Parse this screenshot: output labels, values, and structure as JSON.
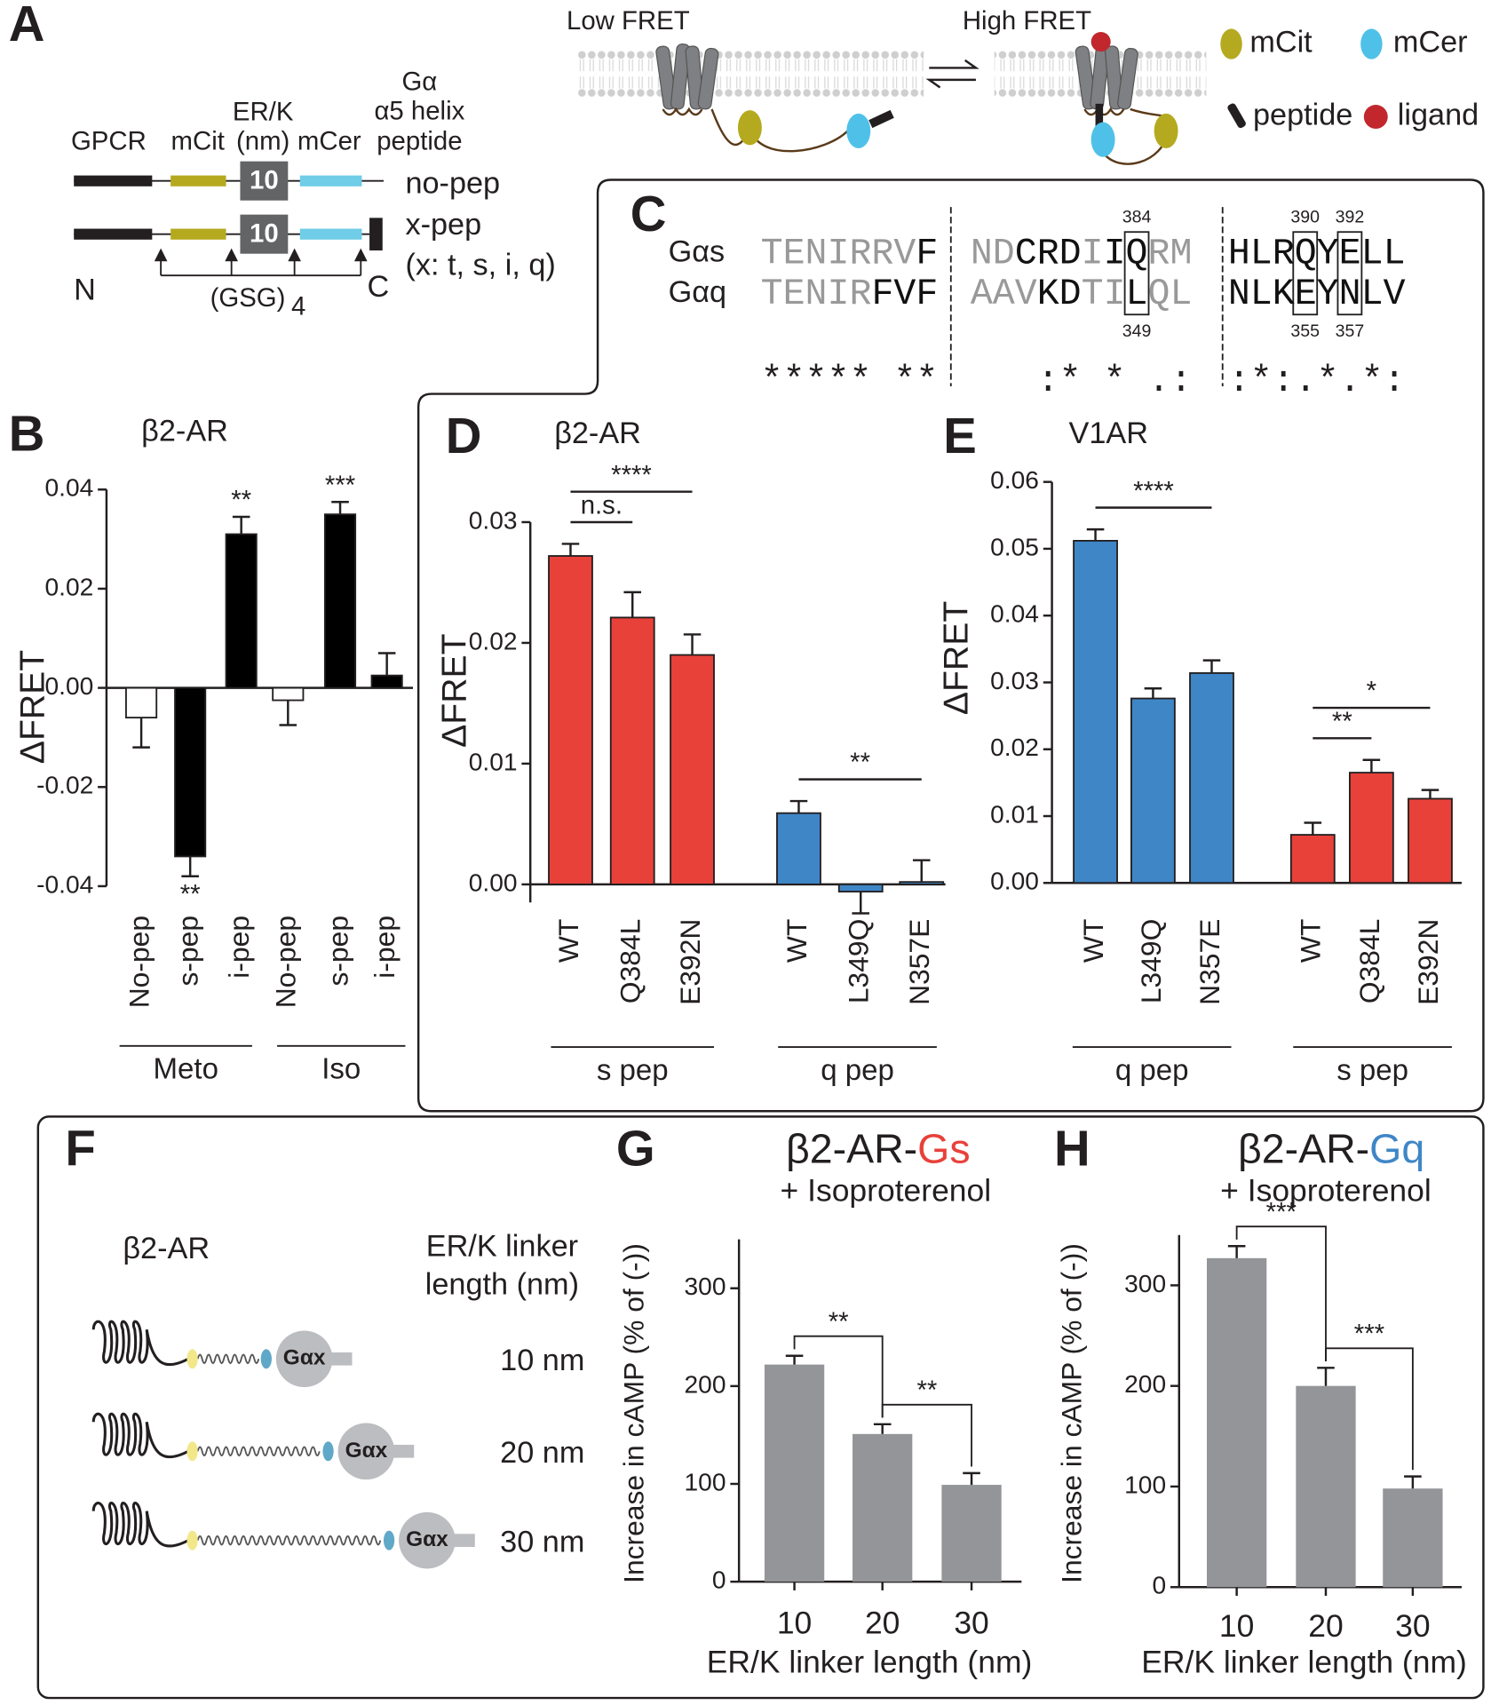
{
  "panel_labels": [
    "A",
    "B",
    "C",
    "D",
    "E",
    "F",
    "G",
    "H"
  ],
  "panel_A": {
    "header": {
      "gpcr": "GPCR",
      "mcit": "mCit",
      "erk": [
        "ER/K",
        "(nm)"
      ],
      "mcer": "mCer",
      "peptide": [
        "Gα",
        "α5 helix",
        "peptide"
      ]
    },
    "constructs": [
      {
        "name": "no-pep",
        "erk": "10"
      },
      {
        "name": "x-pep",
        "erk": "10"
      }
    ],
    "note": "(x: t, s, i, q)",
    "n_term": "N",
    "c_term": "C",
    "linker": "(GSG)",
    "linker_repeat": "4",
    "fret_low": "Low FRET",
    "fret_high": "High FRET",
    "legend": [
      "mCit",
      "mCer",
      "peptide",
      "ligand"
    ]
  },
  "panel_C": {
    "rows": [
      {
        "name": "Gαs",
        "positions": [
          384,
          390,
          392
        ],
        "blocks": [
          [
            {
              "text": "TENIRRV",
              "color": "#999999"
            },
            {
              "text": "F",
              "color": "#111111"
            }
          ],
          [
            {
              "text": "ND",
              "color": "#999999"
            },
            {
              "text": "CRD",
              "color": "#111111"
            },
            {
              "text": "I",
              "color": "#999999"
            },
            {
              "text": "IQ",
              "color": "#111111"
            },
            {
              "text": "RM",
              "color": "#999999"
            }
          ],
          [
            {
              "text": "HLRQYELL",
              "color": "#111111"
            }
          ]
        ]
      },
      {
        "name": "Gαq",
        "positions": [
          349,
          355,
          357
        ],
        "blocks": [
          [
            {
              "text": "TENIR",
              "color": "#999999"
            },
            {
              "text": "FVF",
              "color": "#111111"
            }
          ],
          [
            {
              "text": "AAV",
              "color": "#999999"
            },
            {
              "text": "KD",
              "color": "#111111"
            },
            {
              "text": "TI",
              "color": "#999999"
            },
            {
              "text": "L",
              "color": "#111111"
            },
            {
              "text": "QL",
              "color": "#999999"
            }
          ],
          [
            {
              "text": "NLKEYNLV",
              "color": "#111111"
            }
          ]
        ]
      }
    ],
    "conservation": [
      "***** **",
      "   :* * .:",
      ":*:.*.*:"
    ]
  },
  "panel_F": {
    "title": "β2-AR",
    "header": [
      "ER/K linker",
      "length (nm)"
    ],
    "rows": [
      {
        "length": "10 nm",
        "protein": "Gαx"
      },
      {
        "length": "20 nm",
        "protein": "Gαx"
      },
      {
        "length": "30 nm",
        "protein": "Gαx"
      }
    ]
  },
  "chart_data": [
    {
      "type": "bar",
      "title": "β2-AR",
      "ylabel": "ΔFRET",
      "ylim": [
        -0.04,
        0.04
      ],
      "yticks": [
        0.04,
        0.02,
        {
          "value": 0,
          "label": "0.00"
        },
        -0.02,
        -0.04
      ],
      "groups": [
        {
          "label": "Meto",
          "categories": [
            "No-pep",
            "s-pep",
            "i-pep"
          ],
          "values": [
            -0.006,
            -0.034,
            0.031
          ],
          "errors": [
            0.006,
            0.004,
            0.0035
          ],
          "colors": [
            "#ffffff",
            "#000000",
            "#000000"
          ],
          "significance": [
            null,
            "**",
            "**"
          ]
        },
        {
          "label": "Iso",
          "categories": [
            "No-pep",
            "s-pep",
            "i-pep"
          ],
          "values": [
            -0.0025,
            0.035,
            0.0025
          ],
          "errors": [
            0.005,
            0.0025,
            0.0045
          ],
          "colors": [
            "#ffffff",
            "#000000",
            "#000000"
          ],
          "significance": [
            null,
            "***",
            null
          ]
        }
      ]
    },
    {
      "type": "bar",
      "title": "β2-AR",
      "ylabel": "ΔFRET",
      "ylim": [
        -0.0015,
        0.03
      ],
      "yticks": [
        {
          "value": 0,
          "label": "0.00"
        },
        0.01,
        0.02,
        0.03
      ],
      "groups": [
        {
          "label": "s pep",
          "categories": [
            "WT",
            "Q384L",
            "E392N"
          ],
          "values": [
            0.0272,
            0.0221,
            0.019
          ],
          "errors": [
            0.001,
            0.0021,
            0.0017
          ],
          "color": "#e8413a",
          "comparisons": [
            {
              "label": "n.s.",
              "from": "WT",
              "to": "Q384L"
            },
            {
              "label": "****",
              "from": "WT",
              "to": "E392N"
            }
          ]
        },
        {
          "label": "q pep",
          "categories": [
            "WT",
            "L349Q",
            "N357E"
          ],
          "values": [
            0.0059,
            -0.0006,
            0.0002
          ],
          "errors": [
            0.001,
            0.0018,
            0.0018
          ],
          "color": "#3f86c6",
          "comparisons": [
            {
              "label": "**",
              "from": "WT",
              "to": "N357E"
            }
          ]
        }
      ]
    },
    {
      "type": "bar",
      "title": "V1AR",
      "ylabel": "ΔFRET",
      "ylim": [
        0,
        0.06
      ],
      "yticks": [
        {
          "value": 0,
          "label": "0.00"
        },
        0.01,
        0.02,
        0.03,
        0.04,
        0.05,
        0.06
      ],
      "groups": [
        {
          "label": "q pep",
          "categories": [
            "WT",
            "L349Q",
            "N357E"
          ],
          "values": [
            0.0512,
            0.0276,
            0.0314
          ],
          "errors": [
            0.0017,
            0.0015,
            0.0019
          ],
          "color": "#3f86c6",
          "comparisons": [
            {
              "label": "****",
              "from": "WT",
              "to": "N357E"
            }
          ]
        },
        {
          "label": "s pep",
          "categories": [
            "WT",
            "Q384L",
            "E392N"
          ],
          "values": [
            0.0072,
            0.0165,
            0.0126
          ],
          "errors": [
            0.0018,
            0.0019,
            0.0013
          ],
          "color": "#e8413a",
          "comparisons": [
            {
              "label": "**",
              "from": "WT",
              "to": "Q384L"
            },
            {
              "label": "*",
              "from": "WT",
              "to": "E392N"
            }
          ]
        }
      ]
    },
    {
      "type": "bar",
      "title_parts": [
        {
          "text": "β2-AR-",
          "color": "#231f20"
        },
        {
          "text": "Gs",
          "color": "#e8413a"
        }
      ],
      "subtitle": "+ Isoproterenol",
      "ylabel": "Increase in cAMP (% of (-))",
      "xlabel": "ER/K linker length (nm)",
      "ylim": [
        0,
        350
      ],
      "yticks": [
        0,
        100,
        200,
        300
      ],
      "categories": [
        "10",
        "20",
        "30"
      ],
      "values": [
        222,
        151,
        99
      ],
      "errors": [
        9,
        10,
        12
      ],
      "color": "#939598",
      "comparisons": [
        {
          "label": "**",
          "from": "10",
          "to": "20"
        },
        {
          "label": "**",
          "from": "20",
          "to": "30"
        }
      ]
    },
    {
      "type": "bar",
      "title_parts": [
        {
          "text": "β2-AR-",
          "color": "#231f20"
        },
        {
          "text": "Gq",
          "color": "#3f86c6"
        }
      ],
      "subtitle": "+ Isoproterenol",
      "ylabel": "Increase in cAMP (% of (-))",
      "xlabel": "ER/K linker length (nm)",
      "ylim": [
        0,
        350
      ],
      "yticks": [
        0,
        100,
        200,
        300
      ],
      "categories": [
        "10",
        "20",
        "30"
      ],
      "values": [
        327,
        200,
        98
      ],
      "errors": [
        12,
        18,
        12
      ],
      "color": "#939598",
      "comparisons": [
        {
          "label": "***",
          "from": "10",
          "to": "20"
        },
        {
          "label": "***",
          "from": "20",
          "to": "30"
        }
      ]
    }
  ]
}
